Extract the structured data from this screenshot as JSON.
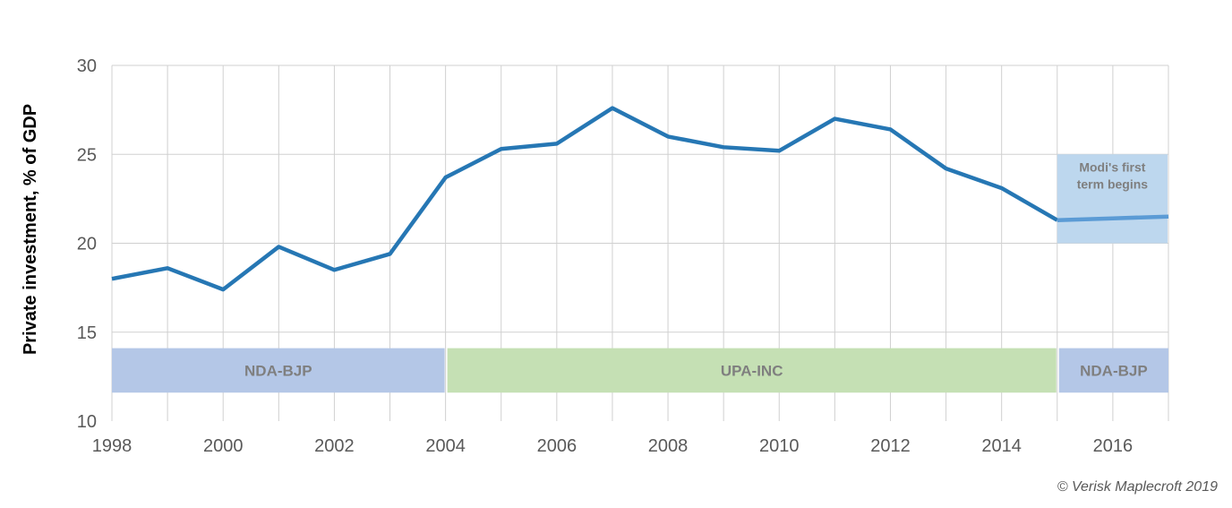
{
  "chart_data": {
    "type": "line",
    "title": "",
    "xlabel": "",
    "ylabel": "Private investment, % of GDP",
    "ylim": [
      10,
      30
    ],
    "yticks": [
      10,
      15,
      20,
      25,
      30
    ],
    "xlim": [
      1998,
      2017
    ],
    "xticks": [
      1998,
      2000,
      2002,
      2004,
      2006,
      2008,
      2010,
      2012,
      2014,
      2016
    ],
    "grid": true,
    "legend": null,
    "x": [
      1998,
      1999,
      2000,
      2001,
      2002,
      2003,
      2004,
      2005,
      2006,
      2007,
      2008,
      2009,
      2010,
      2011,
      2012,
      2013,
      2014,
      2015,
      2016,
      2017
    ],
    "series": [
      {
        "name": "Private investment, % of GDP",
        "color": "#2677b4",
        "values": [
          18.0,
          18.6,
          17.4,
          19.8,
          18.5,
          19.4,
          23.7,
          25.3,
          25.6,
          27.6,
          26.0,
          25.4,
          25.2,
          27.0,
          26.4,
          24.2,
          23.1,
          21.3,
          21.4,
          21.5
        ]
      }
    ],
    "bands": [
      {
        "label": "NDA-BJP",
        "from": 1998,
        "to": 2004,
        "color": "#b4c7e7"
      },
      {
        "label": "UPA-INC",
        "from": 2004,
        "to": 2015,
        "color": "#c5e0b4"
      },
      {
        "label": "NDA-BJP",
        "from": 2015,
        "to": 2017,
        "color": "#b4c7e7"
      }
    ],
    "annotations": [
      {
        "text": "Modi's first term begins",
        "lines": [
          "Modi's first",
          "term begins"
        ],
        "x_from": 2015,
        "x_to": 2017,
        "y_from": 20,
        "y_to": 25,
        "color": "#bdd7ee"
      }
    ]
  },
  "credit": "© Verisk Maplecroft 2019"
}
